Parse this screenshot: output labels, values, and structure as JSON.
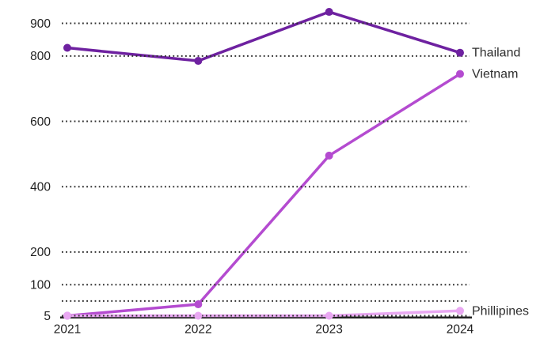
{
  "chart_data": {
    "type": "line",
    "title": "",
    "xlabel": "",
    "ylabel": "",
    "categories": [
      "2021",
      "2022",
      "2023",
      "2024"
    ],
    "series": [
      {
        "name": "Thailand",
        "color": "#6e21a0",
        "values": [
          825,
          785,
          935,
          810
        ]
      },
      {
        "name": "Vietnam",
        "color": "#b44bd0",
        "values": [
          5,
          40,
          495,
          745
        ]
      },
      {
        "name": "Phillipines",
        "color": "#e9a8f2",
        "values": [
          5,
          5,
          5,
          20
        ]
      }
    ],
    "y_ticks": [
      {
        "value": 900,
        "label": "900"
      },
      {
        "value": 800,
        "label": "800"
      },
      {
        "value": 600,
        "label": "600"
      },
      {
        "value": 400,
        "label": "400"
      },
      {
        "value": 200,
        "label": "200"
      },
      {
        "value": 100,
        "label": "100"
      },
      {
        "value": 50,
        "label": ""
      },
      {
        "value": 5,
        "label": "5"
      }
    ],
    "ylim": [
      5,
      947
    ],
    "grid": "dotted-horizontal",
    "legend_position": "end-of-line-labels",
    "colors": {
      "background": "#ffffff",
      "gridline": "#2e2e2e",
      "axis_line": "#212121",
      "tick_label": "#1f1f1f",
      "series_label": "#2e2e2e"
    }
  }
}
